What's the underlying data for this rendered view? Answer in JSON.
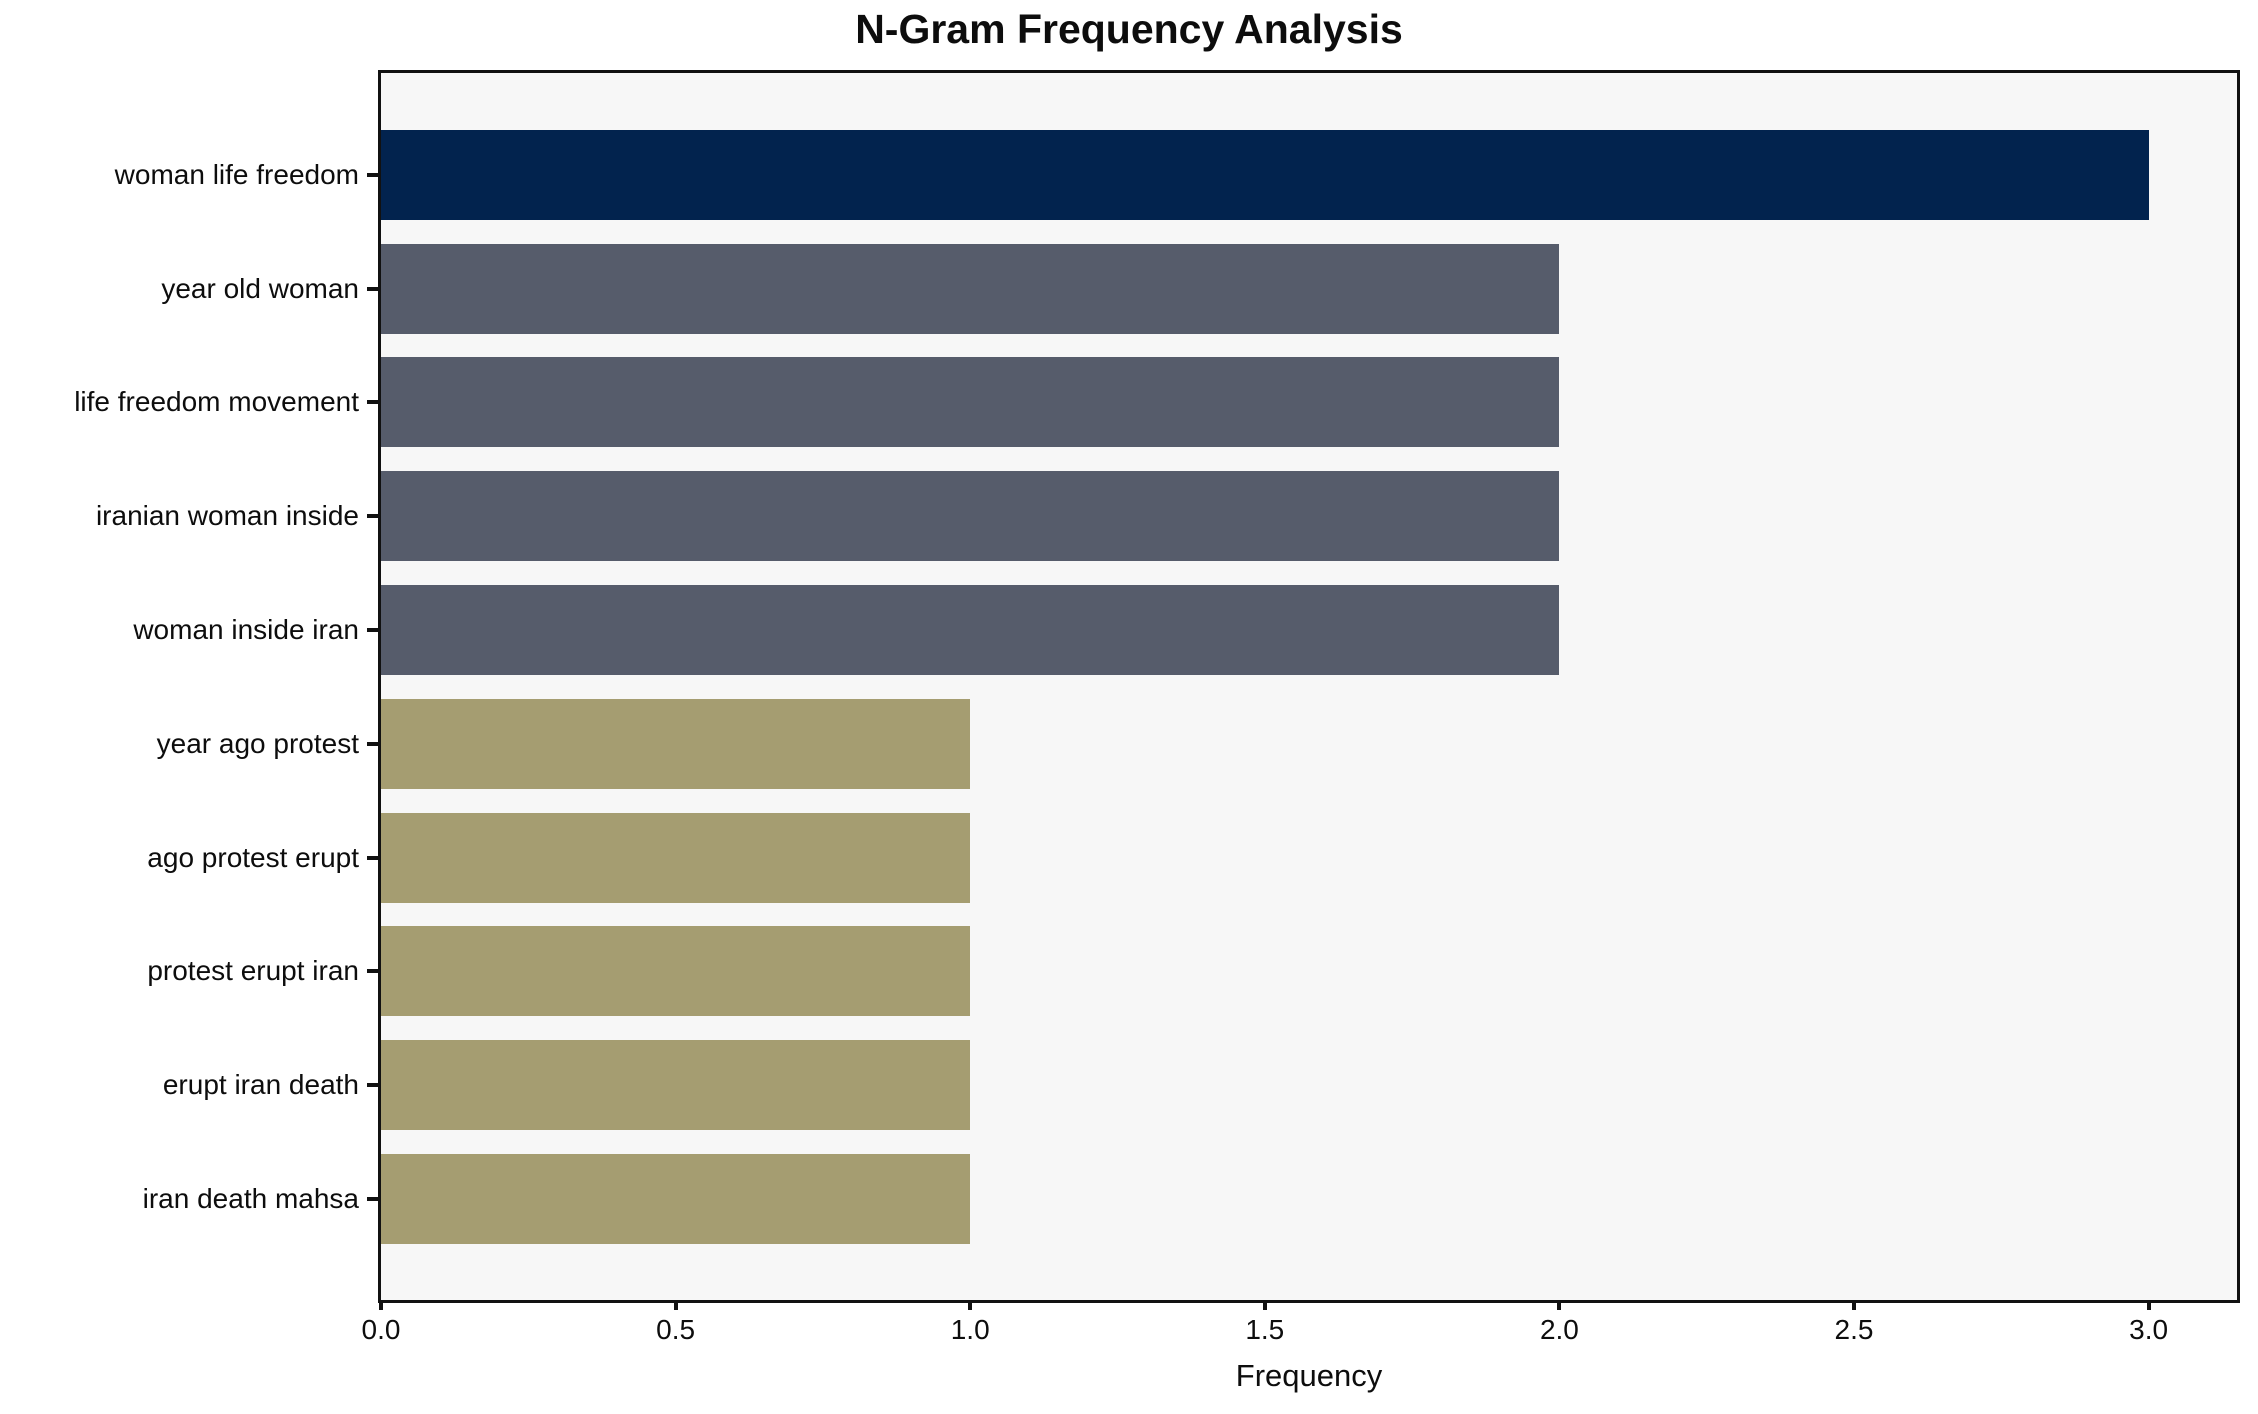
{
  "figure": {
    "title": "N-Gram Frequency Analysis"
  },
  "chart_data": {
    "type": "bar",
    "orientation": "horizontal",
    "title": "N-Gram Frequency Analysis",
    "xlabel": "Frequency",
    "ylabel": "",
    "categories": [
      "woman life freedom",
      "year old woman",
      "life freedom movement",
      "iranian woman inside",
      "woman inside iran",
      "year ago protest",
      "ago protest erupt",
      "protest erupt iran",
      "erupt iran death",
      "iran death mahsa"
    ],
    "values": [
      3,
      2,
      2,
      2,
      2,
      1,
      1,
      1,
      1,
      1
    ],
    "xlim": [
      0,
      3.15
    ],
    "xticks": [
      0,
      0.5,
      1,
      1.5,
      2,
      2.5,
      3
    ],
    "xtick_labels": [
      "0.0",
      "0.5",
      "1.0",
      "1.5",
      "2.0",
      "2.5",
      "3.0"
    ],
    "grid": false,
    "legend_position": "none",
    "bar_colors": [
      "#02234e",
      "#565c6b",
      "#565c6b",
      "#565c6b",
      "#565c6b",
      "#a59d71",
      "#a59d71",
      "#a59d71",
      "#a59d71",
      "#a59d71"
    ],
    "colors": {
      "high_frequency": "#02234e",
      "mid_frequency": "#565c6b",
      "low_frequency": "#a59d71",
      "plot_background": "#f7f7f7",
      "figure_background": "#ffffff",
      "axis": "#111111",
      "text": "#0d0d0d"
    }
  }
}
